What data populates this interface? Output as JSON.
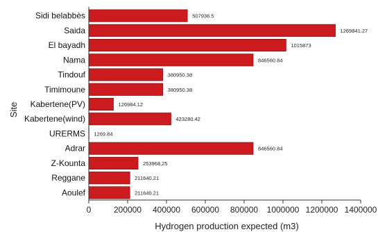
{
  "chart_data": {
    "type": "bar",
    "orientation": "horizontal",
    "categories": [
      "Sidi belabbès",
      "Saida",
      "El bayadh",
      "Nama",
      "Tindouf",
      "Timimoune",
      "Kabertene(PV)",
      "Kabertene(wind)",
      "URERMS",
      "Adrar",
      "Z-Kounta",
      "Reggane",
      "Aoulef"
    ],
    "values": [
      507936.5,
      1269841.27,
      1015873,
      846560.84,
      380950.38,
      380950.38,
      126984.12,
      423280.42,
      1269.84,
      846560.84,
      253968.25,
      211640.21,
      211640.21
    ],
    "value_labels": [
      "507936.5",
      "1269841.27",
      "1015873",
      "846560.84",
      "380950.38",
      "380950.38",
      "126984.12",
      "423280.42",
      "1269.84",
      "846560.84",
      "253968,25",
      "211640.21",
      "211640.21"
    ],
    "xlabel": "Hydrogen  production  expected (m3)",
    "ylabel": "Site",
    "xlim": [
      0,
      1400000
    ],
    "xticks": [
      0,
      200000,
      400000,
      600000,
      800000,
      1000000,
      1200000,
      1400000
    ],
    "xtick_labels": [
      "0",
      "200000",
      "400000",
      "600000",
      "800000",
      "1000000",
      "1200000",
      "1400000"
    ],
    "bar_color": "#cc1b1f",
    "grid": false
  }
}
